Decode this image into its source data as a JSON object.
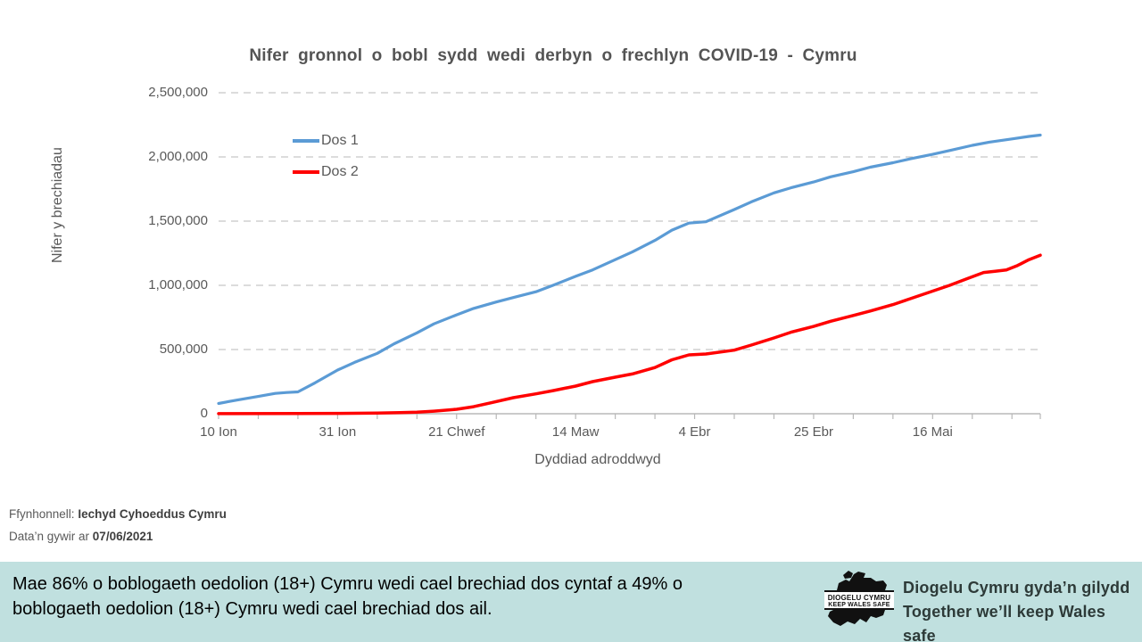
{
  "title": "Nifer gronnol o bobl sydd wedi derbyn o frechlyn COVID-19 - Cymru",
  "chart_data": {
    "type": "line",
    "title": "Nifer gronnol o bobl sydd wedi derbyn o frechlyn COVID-19 - Cymru",
    "xlabel": "Dyddiad adroddwyd",
    "ylabel": "Nifer y brechiadau",
    "ylim": [
      0,
      2500000
    ],
    "grid": "horizontal-dashed",
    "legend_position": "inside-top-left",
    "yticks": [
      {
        "value": 0,
        "label": "0"
      },
      {
        "value": 500000,
        "label": "500,000"
      },
      {
        "value": 1000000,
        "label": "1,000,000"
      },
      {
        "value": 1500000,
        "label": "1,500,000"
      },
      {
        "value": 2000000,
        "label": "2,000,000"
      },
      {
        "value": 2500000,
        "label": "2,500,000"
      }
    ],
    "x_day_range": [
      0,
      145
    ],
    "xtick_minor_interval_days": 7,
    "xticks_major": [
      {
        "day": 0,
        "label": "10 Ion"
      },
      {
        "day": 21,
        "label": "31 Ion"
      },
      {
        "day": 42,
        "label": "21 Chwef"
      },
      {
        "day": 63,
        "label": "14 Maw"
      },
      {
        "day": 84,
        "label": "4 Ebr"
      },
      {
        "day": 105,
        "label": "25 Ebr"
      },
      {
        "day": 126,
        "label": "16 Mai"
      }
    ],
    "series": [
      {
        "name": "Dos 1",
        "color": "#5B9BD5",
        "width": 3.2,
        "points": [
          [
            0,
            80000
          ],
          [
            3,
            105000
          ],
          [
            7,
            135000
          ],
          [
            10,
            158000
          ],
          [
            12,
            165000
          ],
          [
            14,
            170000
          ],
          [
            17,
            240000
          ],
          [
            21,
            340000
          ],
          [
            24,
            400000
          ],
          [
            28,
            470000
          ],
          [
            31,
            545000
          ],
          [
            35,
            630000
          ],
          [
            38,
            700000
          ],
          [
            42,
            770000
          ],
          [
            45,
            820000
          ],
          [
            49,
            870000
          ],
          [
            52,
            905000
          ],
          [
            56,
            950000
          ],
          [
            59,
            1000000
          ],
          [
            63,
            1070000
          ],
          [
            66,
            1120000
          ],
          [
            70,
            1200000
          ],
          [
            73,
            1260000
          ],
          [
            77,
            1350000
          ],
          [
            80,
            1430000
          ],
          [
            83,
            1485000
          ],
          [
            86,
            1495000
          ],
          [
            91,
            1590000
          ],
          [
            94,
            1650000
          ],
          [
            98,
            1720000
          ],
          [
            101,
            1760000
          ],
          [
            105,
            1805000
          ],
          [
            108,
            1845000
          ],
          [
            112,
            1885000
          ],
          [
            115,
            1920000
          ],
          [
            119,
            1955000
          ],
          [
            122,
            1985000
          ],
          [
            126,
            2020000
          ],
          [
            129,
            2050000
          ],
          [
            133,
            2090000
          ],
          [
            136,
            2115000
          ],
          [
            140,
            2140000
          ],
          [
            143,
            2160000
          ],
          [
            145,
            2170000
          ]
        ]
      },
      {
        "name": "Dos 2",
        "color": "#FF0000",
        "width": 3.5,
        "points": [
          [
            0,
            1000
          ],
          [
            14,
            2000
          ],
          [
            21,
            3000
          ],
          [
            28,
            5000
          ],
          [
            32,
            8000
          ],
          [
            35,
            12000
          ],
          [
            38,
            20000
          ],
          [
            42,
            35000
          ],
          [
            45,
            55000
          ],
          [
            48,
            85000
          ],
          [
            52,
            125000
          ],
          [
            56,
            155000
          ],
          [
            59,
            180000
          ],
          [
            63,
            215000
          ],
          [
            66,
            250000
          ],
          [
            70,
            285000
          ],
          [
            73,
            310000
          ],
          [
            77,
            360000
          ],
          [
            80,
            420000
          ],
          [
            83,
            458000
          ],
          [
            86,
            465000
          ],
          [
            91,
            495000
          ],
          [
            94,
            535000
          ],
          [
            98,
            590000
          ],
          [
            101,
            635000
          ],
          [
            105,
            680000
          ],
          [
            108,
            720000
          ],
          [
            112,
            765000
          ],
          [
            115,
            800000
          ],
          [
            119,
            850000
          ],
          [
            122,
            895000
          ],
          [
            126,
            955000
          ],
          [
            129,
            1000000
          ],
          [
            132,
            1050000
          ],
          [
            135,
            1100000
          ],
          [
            137,
            1110000
          ],
          [
            139,
            1120000
          ],
          [
            141,
            1155000
          ],
          [
            143,
            1200000
          ],
          [
            145,
            1235000
          ]
        ]
      }
    ]
  },
  "footer": {
    "source_label": "Ffynhonnell:",
    "source_value": "Iechyd Cyhoeddus Cymru",
    "updated_label": "Data’n gywir ar",
    "updated_value": "07/06/2021"
  },
  "banner": {
    "background": "#c0e0df",
    "text_line1": "Mae 86% o boblogaeth oedolion (18+) Cymru wedi cael brechiad dos cyntaf a 49% o",
    "text_line2": "boblogaeth oedolion (18+) Cymru wedi cael brechiad dos ail.",
    "logo": {
      "line1": "DIOGELU CYMRU",
      "line2": "KEEP WALES SAFE"
    },
    "tagline_line1": "Diogelu Cymru gyda’n gilydd",
    "tagline_line2": "Together we’ll keep Wales safe"
  },
  "colors": {
    "grid": "#c6c6c6",
    "axis": "#b8b8b8",
    "tick": "#b8b8b8",
    "text": "#595959"
  }
}
